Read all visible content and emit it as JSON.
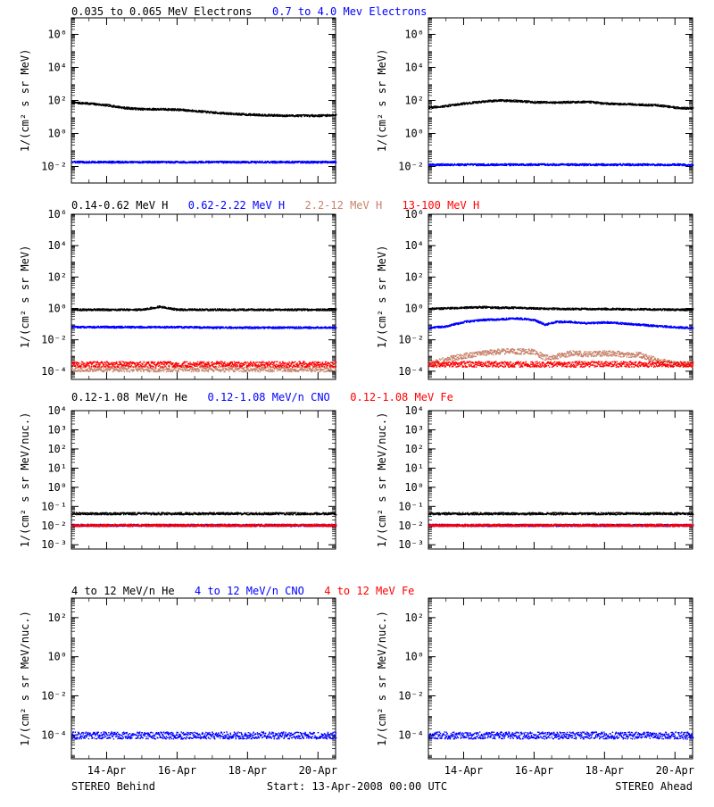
{
  "colors": {
    "black": "#000000",
    "blue": "#0000ff",
    "tan": "#c8826a",
    "red": "#ff0000"
  },
  "footer": {
    "left": "STEREO Behind",
    "center": "Start: 13-Apr-2008 00:00 UTC",
    "right": "STEREO Ahead"
  },
  "chart_data": [
    {
      "row": 1,
      "type": "scatter",
      "log_y": true,
      "ylim": [
        0.001,
        10000000
      ],
      "ylabel": "1/(cm² s sr MeV)",
      "yticks": [
        {
          "v": 0.01,
          "label": "10⁻²"
        },
        {
          "v": 1,
          "label": "10⁰"
        },
        {
          "v": 100,
          "label": "10²"
        },
        {
          "v": 10000,
          "label": "10⁴"
        },
        {
          "v": 1000000,
          "label": "10⁶"
        }
      ],
      "xlim": [
        13,
        20.5
      ],
      "xticks": [
        {
          "v": 14,
          "label": "14-Apr"
        },
        {
          "v": 16,
          "label": "16-Apr"
        },
        {
          "v": 18,
          "label": "18-Apr"
        },
        {
          "v": 20,
          "label": "20-Apr"
        }
      ],
      "show_xlabels": false,
      "series_labels": [
        {
          "name": "0.035 to 0.065 MeV Electrons",
          "color": "#000000"
        },
        {
          "name": "0.7 to 4.0 Mev Electrons",
          "color": "#0000ff"
        }
      ],
      "panels": [
        {
          "side": "behind",
          "series": [
            {
              "color": "#000000",
              "x": [
                13.0,
                13.5,
                14.0,
                14.5,
                15.0,
                15.5,
                16.0,
                16.5,
                17.0,
                17.5,
                18.0,
                18.5,
                19.0,
                19.5,
                20.0,
                20.5
              ],
              "y": [
                80,
                70,
                55,
                38,
                32,
                32,
                30,
                25,
                20,
                17,
                15,
                14,
                13,
                13,
                13,
                14
              ]
            },
            {
              "color": "#0000ff",
              "x": [
                13.0,
                14.0,
                15.0,
                16.0,
                17.0,
                18.0,
                19.0,
                20.0,
                20.5
              ],
              "y": [
                0.02,
                0.02,
                0.02,
                0.02,
                0.02,
                0.02,
                0.02,
                0.02,
                0.02
              ]
            }
          ]
        },
        {
          "side": "ahead",
          "series": [
            {
              "color": "#000000",
              "x": [
                13.0,
                13.5,
                14.0,
                14.5,
                15.0,
                15.5,
                16.0,
                16.5,
                17.0,
                17.5,
                18.0,
                18.5,
                19.0,
                19.5,
                20.0,
                20.5
              ],
              "y": [
                40,
                50,
                70,
                90,
                110,
                100,
                85,
                80,
                85,
                90,
                70,
                65,
                60,
                55,
                40,
                35
              ]
            },
            {
              "color": "#0000ff",
              "x": [
                13.0,
                14.0,
                15.0,
                16.0,
                17.0,
                18.0,
                19.0,
                20.0,
                20.5
              ],
              "y": [
                0.014,
                0.014,
                0.014,
                0.014,
                0.014,
                0.014,
                0.014,
                0.014,
                0.013
              ]
            }
          ]
        }
      ]
    },
    {
      "row": 2,
      "type": "scatter",
      "log_y": true,
      "ylim": [
        3e-05,
        1000000
      ],
      "ylabel": "1/(cm² s sr MeV)",
      "yticks": [
        {
          "v": 0.0001,
          "label": "10⁻⁴"
        },
        {
          "v": 0.01,
          "label": "10⁻²"
        },
        {
          "v": 1,
          "label": "10⁰"
        },
        {
          "v": 100,
          "label": "10²"
        },
        {
          "v": 10000,
          "label": "10⁴"
        },
        {
          "v": 1000000,
          "label": "10⁶"
        }
      ],
      "xlim": [
        13,
        20.5
      ],
      "xticks": [
        {
          "v": 14,
          "label": "14-Apr"
        },
        {
          "v": 16,
          "label": "16-Apr"
        },
        {
          "v": 18,
          "label": "18-Apr"
        },
        {
          "v": 20,
          "label": "20-Apr"
        }
      ],
      "show_xlabels": false,
      "series_labels": [
        {
          "name": "0.14-0.62 MeV H",
          "color": "#000000"
        },
        {
          "name": "0.62-2.22 MeV H",
          "color": "#0000ff"
        },
        {
          "name": "2.2-12 MeV H",
          "color": "#c8826a"
        },
        {
          "name": "13-100 MeV H",
          "color": "#ff0000"
        }
      ],
      "panels": [
        {
          "side": "behind",
          "series": [
            {
              "color": "#000000",
              "x": [
                13.0,
                14.0,
                15.0,
                15.5,
                16.0,
                16.5,
                17.0,
                18.0,
                19.0,
                20.0,
                20.5
              ],
              "y": [
                0.9,
                0.9,
                0.9,
                1.4,
                0.9,
                0.9,
                0.9,
                0.9,
                0.9,
                0.9,
                0.9
              ]
            },
            {
              "color": "#0000ff",
              "x": [
                13.0,
                14.0,
                15.0,
                16.0,
                17.0,
                18.0,
                19.0,
                20.0,
                20.5
              ],
              "y": [
                0.07,
                0.07,
                0.07,
                0.07,
                0.065,
                0.065,
                0.065,
                0.065,
                0.065
              ]
            },
            {
              "color": "#c8826a",
              "x": [
                13.0,
                14.0,
                15.0,
                16.0,
                17.0,
                18.0,
                19.0,
                20.0,
                20.5
              ],
              "y": [
                0.00015,
                0.00015,
                0.00015,
                0.00015,
                0.00015,
                0.00015,
                0.00015,
                0.00015,
                0.00015
              ]
            },
            {
              "color": "#ff0000",
              "x": [
                13.0,
                14.0,
                15.0,
                16.0,
                17.0,
                18.0,
                19.0,
                20.0,
                20.5
              ],
              "y": [
                0.0003,
                0.0003,
                0.0003,
                0.0003,
                0.0003,
                0.0003,
                0.0003,
                0.0003,
                0.0003
              ]
            }
          ]
        },
        {
          "side": "ahead",
          "series": [
            {
              "color": "#000000",
              "x": [
                13.0,
                14.0,
                14.5,
                15.0,
                15.5,
                16.0,
                17.0,
                18.0,
                19.0,
                20.0,
                20.5
              ],
              "y": [
                1.0,
                1.2,
                1.3,
                1.2,
                1.2,
                1.1,
                1.0,
                1.0,
                0.95,
                0.9,
                0.9
              ]
            },
            {
              "color": "#0000ff",
              "x": [
                13.0,
                13.5,
                14.0,
                14.5,
                15.0,
                15.5,
                16.0,
                16.3,
                16.6,
                17.0,
                17.5,
                18.0,
                18.5,
                19.0,
                19.5,
                20.0,
                20.5
              ],
              "y": [
                0.06,
                0.08,
                0.15,
                0.2,
                0.22,
                0.25,
                0.2,
                0.1,
                0.15,
                0.15,
                0.12,
                0.14,
                0.12,
                0.1,
                0.08,
                0.07,
                0.06
              ]
            },
            {
              "color": "#c8826a",
              "x": [
                13.0,
                13.5,
                14.0,
                14.5,
                15.0,
                15.5,
                16.0,
                16.3,
                16.6,
                17.0,
                17.5,
                18.0,
                18.5,
                19.0,
                19.5,
                20.0,
                20.5
              ],
              "y": [
                0.0003,
                0.0006,
                0.001,
                0.0015,
                0.002,
                0.002,
                0.0018,
                0.0008,
                0.0009,
                0.0015,
                0.0013,
                0.0015,
                0.0013,
                0.0012,
                0.0005,
                0.0003,
                0.0003
              ]
            },
            {
              "color": "#ff0000",
              "x": [
                13.0,
                14.0,
                15.0,
                16.0,
                17.0,
                18.0,
                19.0,
                20.0,
                20.5
              ],
              "y": [
                0.0003,
                0.0003,
                0.0003,
                0.0003,
                0.0003,
                0.0003,
                0.0003,
                0.0003,
                0.0003
              ]
            }
          ]
        }
      ]
    },
    {
      "row": 3,
      "type": "scatter",
      "log_y": true,
      "ylim": [
        0.0006,
        10000
      ],
      "ylabel": "1/(cm² s sr MeV/nuc.)",
      "yticks": [
        {
          "v": 0.001,
          "label": "10⁻³"
        },
        {
          "v": 0.01,
          "label": "10⁻²"
        },
        {
          "v": 0.1,
          "label": "10⁻¹"
        },
        {
          "v": 1,
          "label": "10⁰"
        },
        {
          "v": 10,
          "label": "10¹"
        },
        {
          "v": 100,
          "label": "10²"
        },
        {
          "v": 1000,
          "label": "10³"
        },
        {
          "v": 10000,
          "label": "10⁴"
        }
      ],
      "xlim": [
        13,
        20.5
      ],
      "xticks": [
        {
          "v": 14,
          "label": "14-Apr"
        },
        {
          "v": 16,
          "label": "16-Apr"
        },
        {
          "v": 18,
          "label": "18-Apr"
        },
        {
          "v": 20,
          "label": "20-Apr"
        }
      ],
      "show_xlabels": false,
      "series_labels": [
        {
          "name": "0.12-1.08 MeV/n He",
          "color": "#000000"
        },
        {
          "name": "0.12-1.08 MeV/n CNO",
          "color": "#0000ff"
        },
        {
          "name": "0.12-1.08 MeV Fe",
          "color": "#ff0000"
        }
      ],
      "panels": [
        {
          "side": "behind",
          "series": [
            {
              "color": "#000000",
              "x": [
                13.0,
                14.0,
                15.0,
                16.0,
                17.0,
                18.0,
                19.0,
                20.0,
                20.5
              ],
              "y": [
                0.045,
                0.045,
                0.045,
                0.045,
                0.045,
                0.045,
                0.045,
                0.045,
                0.045
              ]
            },
            {
              "color": "#0000ff",
              "x": [
                13.0,
                14.0,
                15.0,
                16.0,
                17.0,
                18.0,
                19.0,
                20.0,
                20.5
              ],
              "y": [
                0.011,
                0.011,
                0.011,
                0.011,
                0.011,
                0.011,
                0.011,
                0.011,
                0.011
              ]
            },
            {
              "color": "#ff0000",
              "x": [
                13.0,
                14.0,
                15.0,
                16.0,
                17.0,
                18.0,
                19.0,
                20.0,
                20.5
              ],
              "y": [
                0.011,
                0.011,
                0.011,
                0.011,
                0.011,
                0.011,
                0.011,
                0.011,
                0.011
              ]
            }
          ]
        },
        {
          "side": "ahead",
          "series": [
            {
              "color": "#000000",
              "x": [
                13.0,
                14.0,
                15.0,
                16.0,
                17.0,
                18.0,
                19.0,
                20.0,
                20.5
              ],
              "y": [
                0.045,
                0.045,
                0.045,
                0.045,
                0.045,
                0.045,
                0.045,
                0.045,
                0.045
              ]
            },
            {
              "color": "#0000ff",
              "x": [
                13.0,
                14.0,
                15.0,
                16.0,
                17.0,
                18.0,
                19.0,
                20.0,
                20.5
              ],
              "y": [
                0.011,
                0.011,
                0.011,
                0.011,
                0.011,
                0.011,
                0.011,
                0.011,
                0.011
              ]
            },
            {
              "color": "#ff0000",
              "x": [
                13.0,
                14.0,
                15.0,
                16.0,
                17.0,
                18.0,
                19.0,
                20.0,
                20.5
              ],
              "y": [
                0.011,
                0.011,
                0.011,
                0.011,
                0.011,
                0.011,
                0.011,
                0.011,
                0.011
              ]
            }
          ]
        }
      ]
    },
    {
      "row": 4,
      "type": "scatter",
      "log_y": true,
      "ylim": [
        6e-06,
        1000
      ],
      "ylabel": "1/(cm² s sr MeV/nuc.)",
      "yticks": [
        {
          "v": 0.0001,
          "label": "10⁻⁴"
        },
        {
          "v": 0.01,
          "label": "10⁻²"
        },
        {
          "v": 1,
          "label": "10⁰"
        },
        {
          "v": 100,
          "label": "10²"
        }
      ],
      "xlim": [
        13,
        20.5
      ],
      "xticks": [
        {
          "v": 14,
          "label": "14-Apr"
        },
        {
          "v": 16,
          "label": "16-Apr"
        },
        {
          "v": 18,
          "label": "18-Apr"
        },
        {
          "v": 20,
          "label": "20-Apr"
        }
      ],
      "show_xlabels": true,
      "series_labels": [
        {
          "name": "4 to 12 MeV/n He",
          "color": "#000000"
        },
        {
          "name": "4 to 12 MeV/n CNO",
          "color": "#0000ff"
        },
        {
          "name": "4 to 12 MeV Fe",
          "color": "#ff0000"
        }
      ],
      "panels": [
        {
          "side": "behind",
          "series": [
            {
              "color": "#0000ff",
              "x": [
                13.0,
                14.0,
                15.0,
                16.0,
                17.0,
                18.0,
                19.0,
                20.0,
                20.5
              ],
              "y": [
                0.0001,
                0.0001,
                0.0001,
                0.0001,
                0.0001,
                0.0001,
                0.0001,
                0.0001,
                0.0001
              ]
            }
          ]
        },
        {
          "side": "ahead",
          "series": [
            {
              "color": "#0000ff",
              "x": [
                13.0,
                14.0,
                15.0,
                16.0,
                17.0,
                18.0,
                19.0,
                20.0,
                20.5
              ],
              "y": [
                0.0001,
                0.0001,
                0.0001,
                0.0001,
                0.0001,
                0.0001,
                0.0001,
                0.0001,
                0.0001
              ]
            }
          ]
        }
      ]
    }
  ]
}
